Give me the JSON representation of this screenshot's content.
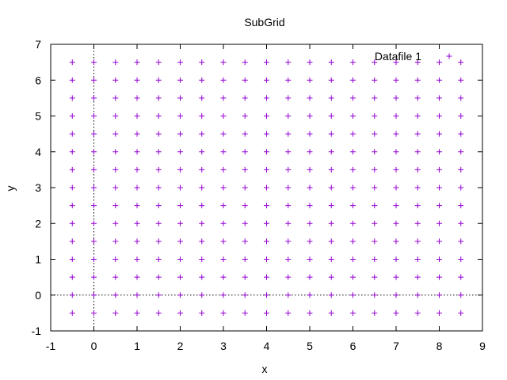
{
  "chart_data": {
    "type": "scatter",
    "title": "SubGrid",
    "xlabel": "x",
    "ylabel": "y",
    "xlim": [
      -1,
      9
    ],
    "ylim": [
      -1,
      7
    ],
    "xticks": [
      -1,
      0,
      1,
      2,
      3,
      4,
      5,
      6,
      7,
      8,
      9
    ],
    "yticks": [
      -1,
      0,
      1,
      2,
      3,
      4,
      5,
      6,
      7
    ],
    "grid": false,
    "zero_axes": true,
    "legend_position": "top-right",
    "marker": "plus",
    "series": [
      {
        "name": "Datafile 1",
        "color": "#9400d3",
        "grid_points": {
          "x_start": -0.5,
          "x_end": 8.5,
          "x_step": 0.5,
          "y_start": -0.5,
          "y_end": 6.5,
          "y_step": 0.5
        }
      }
    ]
  }
}
